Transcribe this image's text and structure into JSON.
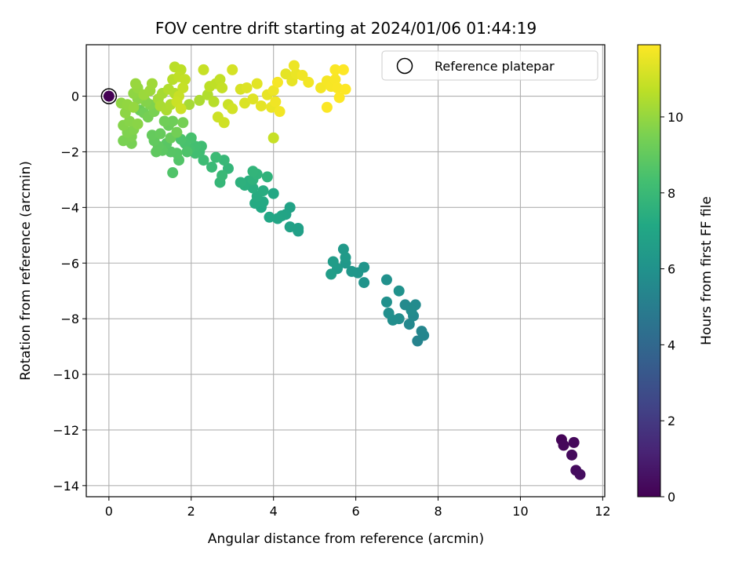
{
  "chart_data": {
    "type": "scatter",
    "title": "FOV centre drift starting at 2024/01/06 01:44:19",
    "xlabel": "Angular distance from reference (arcmin)",
    "ylabel": "Rotation from reference (arcmin)",
    "xlim": [
      -0.55,
      12.05
    ],
    "ylim": [
      -14.4,
      1.85
    ],
    "xticks": [
      0,
      2,
      4,
      6,
      8,
      10,
      12
    ],
    "yticks": [
      0,
      -2,
      -4,
      -6,
      -8,
      -10,
      -12,
      -14
    ],
    "grid": true,
    "colormap": "viridis",
    "colorbar": {
      "label": "Hours from first FF file",
      "range": [
        0,
        11.9
      ],
      "ticks": [
        0,
        2,
        4,
        6,
        8,
        10
      ]
    },
    "legend": {
      "position": "top-right",
      "entries": [
        "Reference platepar"
      ]
    },
    "reference_point": {
      "x": 0,
      "y": 0
    },
    "points": [
      {
        "x": 11.0,
        "y": -12.35,
        "h": 0.1
      },
      {
        "x": 11.05,
        "y": -12.55,
        "h": 0.2
      },
      {
        "x": 11.3,
        "y": -12.45,
        "h": 0.25
      },
      {
        "x": 11.25,
        "y": -12.9,
        "h": 0.3
      },
      {
        "x": 11.35,
        "y": -13.45,
        "h": 0.35
      },
      {
        "x": 11.45,
        "y": -13.6,
        "h": 0.4
      },
      {
        "x": 7.5,
        "y": -8.8,
        "h": 5.3
      },
      {
        "x": 7.65,
        "y": -8.6,
        "h": 5.4
      },
      {
        "x": 7.6,
        "y": -8.45,
        "h": 5.45
      },
      {
        "x": 7.3,
        "y": -8.2,
        "h": 5.5
      },
      {
        "x": 7.4,
        "y": -7.9,
        "h": 5.55
      },
      {
        "x": 7.2,
        "y": -7.5,
        "h": 5.6
      },
      {
        "x": 7.45,
        "y": -7.5,
        "h": 5.65
      },
      {
        "x": 7.35,
        "y": -7.7,
        "h": 5.7
      },
      {
        "x": 7.05,
        "y": -8.0,
        "h": 5.75
      },
      {
        "x": 6.9,
        "y": -8.05,
        "h": 5.8
      },
      {
        "x": 6.8,
        "y": -7.8,
        "h": 5.85
      },
      {
        "x": 6.75,
        "y": -7.4,
        "h": 5.9
      },
      {
        "x": 6.75,
        "y": -6.6,
        "h": 5.95
      },
      {
        "x": 7.05,
        "y": -7.0,
        "h": 6.0
      },
      {
        "x": 6.2,
        "y": -6.7,
        "h": 6.1
      },
      {
        "x": 6.2,
        "y": -6.15,
        "h": 6.15
      },
      {
        "x": 6.05,
        "y": -6.35,
        "h": 6.2
      },
      {
        "x": 5.9,
        "y": -6.3,
        "h": 6.25
      },
      {
        "x": 5.75,
        "y": -6.0,
        "h": 6.3
      },
      {
        "x": 5.7,
        "y": -5.5,
        "h": 6.35
      },
      {
        "x": 5.75,
        "y": -5.8,
        "h": 6.4
      },
      {
        "x": 5.55,
        "y": -6.2,
        "h": 6.45
      },
      {
        "x": 5.45,
        "y": -5.95,
        "h": 6.5
      },
      {
        "x": 5.4,
        "y": -6.4,
        "h": 6.55
      },
      {
        "x": 4.6,
        "y": -4.85,
        "h": 6.7
      },
      {
        "x": 4.6,
        "y": -4.75,
        "h": 6.75
      },
      {
        "x": 4.4,
        "y": -4.7,
        "h": 6.8
      },
      {
        "x": 4.4,
        "y": -4.0,
        "h": 6.85
      },
      {
        "x": 4.3,
        "y": -4.25,
        "h": 6.9
      },
      {
        "x": 4.2,
        "y": -4.3,
        "h": 6.95
      },
      {
        "x": 4.1,
        "y": -4.4,
        "h": 7.0
      },
      {
        "x": 3.9,
        "y": -4.35,
        "h": 7.05
      },
      {
        "x": 4.0,
        "y": -3.5,
        "h": 7.1
      },
      {
        "x": 3.7,
        "y": -4.0,
        "h": 7.15
      },
      {
        "x": 3.75,
        "y": -3.8,
        "h": 7.2
      },
      {
        "x": 3.55,
        "y": -3.85,
        "h": 7.25
      },
      {
        "x": 3.6,
        "y": -3.6,
        "h": 7.3
      },
      {
        "x": 3.75,
        "y": -3.4,
        "h": 7.35
      },
      {
        "x": 3.5,
        "y": -3.3,
        "h": 7.4
      },
      {
        "x": 3.4,
        "y": -3.05,
        "h": 7.45
      },
      {
        "x": 3.3,
        "y": -3.2,
        "h": 7.5
      },
      {
        "x": 3.2,
        "y": -3.1,
        "h": 7.55
      },
      {
        "x": 3.5,
        "y": -3.0,
        "h": 7.6
      },
      {
        "x": 3.85,
        "y": -2.9,
        "h": 7.65
      },
      {
        "x": 3.6,
        "y": -2.8,
        "h": 7.7
      },
      {
        "x": 3.5,
        "y": -2.7,
        "h": 7.75
      },
      {
        "x": 2.9,
        "y": -2.6,
        "h": 7.8
      },
      {
        "x": 2.7,
        "y": -3.1,
        "h": 7.85
      },
      {
        "x": 2.8,
        "y": -2.3,
        "h": 7.9
      },
      {
        "x": 2.75,
        "y": -2.85,
        "h": 7.95
      },
      {
        "x": 2.5,
        "y": -2.55,
        "h": 8.0
      },
      {
        "x": 2.6,
        "y": -2.2,
        "h": 8.05
      },
      {
        "x": 2.3,
        "y": -2.3,
        "h": 8.1
      },
      {
        "x": 2.2,
        "y": -2.0,
        "h": 8.15
      },
      {
        "x": 2.25,
        "y": -1.8,
        "h": 8.2
      },
      {
        "x": 2.1,
        "y": -2.05,
        "h": 8.25
      },
      {
        "x": 2.1,
        "y": -1.8,
        "h": 8.3
      },
      {
        "x": 1.95,
        "y": -1.9,
        "h": 8.35
      },
      {
        "x": 2.0,
        "y": -1.5,
        "h": 8.4
      },
      {
        "x": 1.85,
        "y": -1.7,
        "h": 8.45
      },
      {
        "x": 1.75,
        "y": -1.55,
        "h": 8.5
      },
      {
        "x": 1.9,
        "y": -2.0,
        "h": 8.55
      },
      {
        "x": 1.55,
        "y": -2.75,
        "h": 8.6
      },
      {
        "x": 1.7,
        "y": -2.3,
        "h": 8.65
      },
      {
        "x": 1.65,
        "y": -2.05,
        "h": 8.7
      },
      {
        "x": 1.5,
        "y": -2.0,
        "h": 8.75
      },
      {
        "x": 1.4,
        "y": -1.7,
        "h": 8.8
      },
      {
        "x": 1.3,
        "y": -1.95,
        "h": 8.85
      },
      {
        "x": 1.2,
        "y": -1.8,
        "h": 8.9
      },
      {
        "x": 1.15,
        "y": -2.0,
        "h": 8.95
      },
      {
        "x": 1.1,
        "y": -1.6,
        "h": 9.0
      },
      {
        "x": 1.05,
        "y": -1.4,
        "h": 9.05
      },
      {
        "x": 1.25,
        "y": -1.35,
        "h": 9.1
      },
      {
        "x": 1.5,
        "y": -1.5,
        "h": 9.15
      },
      {
        "x": 1.45,
        "y": -1.05,
        "h": 9.2
      },
      {
        "x": 1.55,
        "y": -0.9,
        "h": 9.25
      },
      {
        "x": 1.35,
        "y": -0.9,
        "h": 9.3
      },
      {
        "x": 1.65,
        "y": -1.3,
        "h": 9.35
      },
      {
        "x": 1.8,
        "y": -0.95,
        "h": 9.4
      },
      {
        "x": 0.55,
        "y": -1.7,
        "h": 9.45
      },
      {
        "x": 0.35,
        "y": -1.6,
        "h": 9.5
      },
      {
        "x": 0.55,
        "y": -1.45,
        "h": 9.55
      },
      {
        "x": 0.45,
        "y": -1.3,
        "h": 9.6
      },
      {
        "x": 0.6,
        "y": -1.2,
        "h": 9.65
      },
      {
        "x": 0.35,
        "y": -1.05,
        "h": 9.7
      },
      {
        "x": 0.5,
        "y": -0.9,
        "h": 9.75
      },
      {
        "x": 0.7,
        "y": -1.0,
        "h": 9.8
      },
      {
        "x": 0.4,
        "y": -0.6,
        "h": 9.85
      },
      {
        "x": 0.3,
        "y": -0.25,
        "h": 9.9
      },
      {
        "x": 0.45,
        "y": -0.3,
        "h": 9.95
      },
      {
        "x": 0.6,
        "y": -0.4,
        "h": 10.0
      },
      {
        "x": 0.75,
        "y": -0.5,
        "h": 9.2
      },
      {
        "x": 0.85,
        "y": -0.6,
        "h": 9.3
      },
      {
        "x": 0.95,
        "y": -0.75,
        "h": 9.4
      },
      {
        "x": 1.1,
        "y": -0.55,
        "h": 9.5
      },
      {
        "x": 1.0,
        "y": -0.3,
        "h": 9.6
      },
      {
        "x": 0.9,
        "y": -0.2,
        "h": 9.7
      },
      {
        "x": 0.7,
        "y": -0.1,
        "h": 9.8
      },
      {
        "x": 0.6,
        "y": 0.1,
        "h": 9.9
      },
      {
        "x": 0.7,
        "y": 0.3,
        "h": 10.0
      },
      {
        "x": 0.65,
        "y": 0.45,
        "h": 10.05
      },
      {
        "x": 0.85,
        "y": 0.05,
        "h": 10.1
      },
      {
        "x": 1.0,
        "y": 0.2,
        "h": 10.15
      },
      {
        "x": 1.05,
        "y": 0.45,
        "h": 10.2
      },
      {
        "x": 1.2,
        "y": -0.1,
        "h": 10.25
      },
      {
        "x": 1.3,
        "y": 0.1,
        "h": 10.3
      },
      {
        "x": 1.25,
        "y": -0.35,
        "h": 10.35
      },
      {
        "x": 1.4,
        "y": -0.5,
        "h": 10.4
      },
      {
        "x": 1.5,
        "y": -0.3,
        "h": 10.45
      },
      {
        "x": 1.45,
        "y": 0.25,
        "h": 10.5
      },
      {
        "x": 1.6,
        "y": 0.1,
        "h": 10.55
      },
      {
        "x": 1.55,
        "y": 0.6,
        "h": 10.6
      },
      {
        "x": 1.6,
        "y": 1.05,
        "h": 10.65
      },
      {
        "x": 1.75,
        "y": 0.95,
        "h": 10.7
      },
      {
        "x": 1.7,
        "y": 0.7,
        "h": 10.75
      },
      {
        "x": 1.85,
        "y": 0.6,
        "h": 10.8
      },
      {
        "x": 1.8,
        "y": 0.3,
        "h": 10.85
      },
      {
        "x": 1.7,
        "y": 0.0,
        "h": 10.9
      },
      {
        "x": 1.65,
        "y": -0.2,
        "h": 10.95
      },
      {
        "x": 1.75,
        "y": -0.45,
        "h": 11.0
      },
      {
        "x": 1.95,
        "y": -0.3,
        "h": 10.3
      },
      {
        "x": 2.2,
        "y": -0.15,
        "h": 10.4
      },
      {
        "x": 2.4,
        "y": 0.05,
        "h": 10.5
      },
      {
        "x": 2.55,
        "y": -0.2,
        "h": 10.6
      },
      {
        "x": 2.45,
        "y": 0.35,
        "h": 10.7
      },
      {
        "x": 2.6,
        "y": 0.45,
        "h": 10.75
      },
      {
        "x": 2.7,
        "y": 0.6,
        "h": 10.8
      },
      {
        "x": 2.75,
        "y": 0.3,
        "h": 10.85
      },
      {
        "x": 2.3,
        "y": 0.95,
        "h": 10.9
      },
      {
        "x": 2.9,
        "y": -0.3,
        "h": 10.95
      },
      {
        "x": 2.65,
        "y": -0.75,
        "h": 11.0
      },
      {
        "x": 2.8,
        "y": -0.95,
        "h": 11.05
      },
      {
        "x": 3.0,
        "y": -0.45,
        "h": 11.1
      },
      {
        "x": 3.0,
        "y": 0.95,
        "h": 11.15
      },
      {
        "x": 3.2,
        "y": 0.25,
        "h": 11.2
      },
      {
        "x": 3.3,
        "y": -0.25,
        "h": 11.25
      },
      {
        "x": 3.35,
        "y": 0.3,
        "h": 11.3
      },
      {
        "x": 3.5,
        "y": -0.1,
        "h": 11.35
      },
      {
        "x": 3.6,
        "y": 0.45,
        "h": 11.4
      },
      {
        "x": 3.7,
        "y": -0.35,
        "h": 11.45
      },
      {
        "x": 3.85,
        "y": 0.05,
        "h": 11.5
      },
      {
        "x": 3.95,
        "y": -0.4,
        "h": 11.55
      },
      {
        "x": 4.0,
        "y": 0.2,
        "h": 11.6
      },
      {
        "x": 4.05,
        "y": -0.2,
        "h": 11.65
      },
      {
        "x": 4.15,
        "y": -0.55,
        "h": 11.7
      },
      {
        "x": 4.1,
        "y": 0.5,
        "h": 11.75
      },
      {
        "x": 4.0,
        "y": -1.5,
        "h": 10.9
      },
      {
        "x": 4.3,
        "y": 0.8,
        "h": 11.45
      },
      {
        "x": 4.45,
        "y": 0.55,
        "h": 11.5
      },
      {
        "x": 4.55,
        "y": 0.8,
        "h": 11.55
      },
      {
        "x": 4.5,
        "y": 1.1,
        "h": 11.6
      },
      {
        "x": 4.7,
        "y": 0.75,
        "h": 11.65
      },
      {
        "x": 4.85,
        "y": 0.5,
        "h": 11.7
      },
      {
        "x": 5.15,
        "y": 0.3,
        "h": 11.72
      },
      {
        "x": 5.3,
        "y": 0.55,
        "h": 11.75
      },
      {
        "x": 5.4,
        "y": 0.35,
        "h": 11.78
      },
      {
        "x": 5.5,
        "y": 0.6,
        "h": 11.8
      },
      {
        "x": 5.55,
        "y": 0.3,
        "h": 11.82
      },
      {
        "x": 5.5,
        "y": 0.95,
        "h": 11.84
      },
      {
        "x": 5.3,
        "y": -0.4,
        "h": 11.86
      },
      {
        "x": 5.6,
        "y": -0.05,
        "h": 11.88
      },
      {
        "x": 5.75,
        "y": 0.25,
        "h": 11.9
      },
      {
        "x": 5.7,
        "y": 0.95,
        "h": 11.9
      }
    ]
  }
}
